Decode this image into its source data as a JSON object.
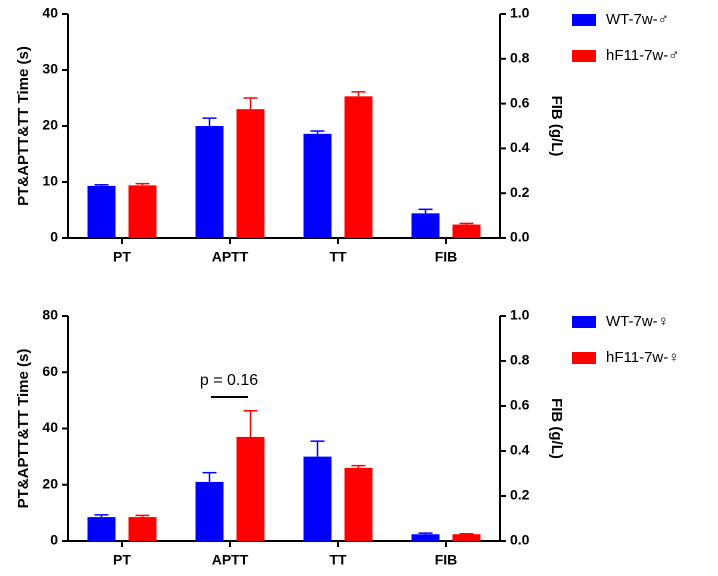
{
  "chart_data": [
    {
      "type": "bar",
      "y_label": "PT&APTT&TT Time (s)",
      "y2_label": "FIB (g/L)",
      "categories": [
        "PT",
        "APTT",
        "TT",
        "FIB"
      ],
      "category_axes": [
        "y",
        "y",
        "y",
        "y2"
      ],
      "ylim": [
        0,
        40
      ],
      "yticks": [
        0,
        10,
        20,
        30,
        40
      ],
      "y2lim": [
        0,
        1
      ],
      "y2ticks": [
        {
          "value": 0,
          "label": "0.0"
        },
        0.2,
        0.4,
        0.6,
        0.8,
        {
          "value": 1,
          "label": "1.0"
        }
      ],
      "series": [
        {
          "name": "WT-7w-♂",
          "color": "#0000ff",
          "values": [
            9.3,
            20,
            18.6,
            0.11
          ],
          "errors": [
            0.2,
            1.4,
            0.5,
            0.018
          ]
        },
        {
          "name": "hF11-7w-♂",
          "color": "#ff0000",
          "values": [
            9.4,
            23,
            25.3,
            0.06
          ],
          "errors": [
            0.3,
            2,
            0.8,
            0.005
          ]
        }
      ]
    },
    {
      "type": "bar",
      "y_label": "PT&APTT&TT Time (s)",
      "y2_label": "FIB (g/L)",
      "categories": [
        "PT",
        "APTT",
        "TT",
        "FIB"
      ],
      "category_axes": [
        "y",
        "y",
        "y",
        "y2"
      ],
      "ylim": [
        0,
        80
      ],
      "yticks": [
        0,
        20,
        40,
        60,
        80
      ],
      "y2lim": [
        0,
        1
      ],
      "y2ticks": [
        {
          "value": 0,
          "label": "0.0"
        },
        0.2,
        0.4,
        0.6,
        0.8,
        {
          "value": 1,
          "label": "1.0"
        }
      ],
      "annotation": "p = 0.16",
      "series": [
        {
          "name": "WT-7w-♀",
          "color": "#0000ff",
          "values": [
            8.5,
            21,
            30,
            0.03
          ],
          "errors": [
            0.8,
            3.3,
            5.5,
            0.005
          ]
        },
        {
          "name": "hF11-7w-♀",
          "color": "#ff0000",
          "values": [
            8.5,
            37,
            26,
            0.03
          ],
          "errors": [
            0.6,
            9.3,
            0.8,
            0.002
          ]
        }
      ]
    }
  ]
}
